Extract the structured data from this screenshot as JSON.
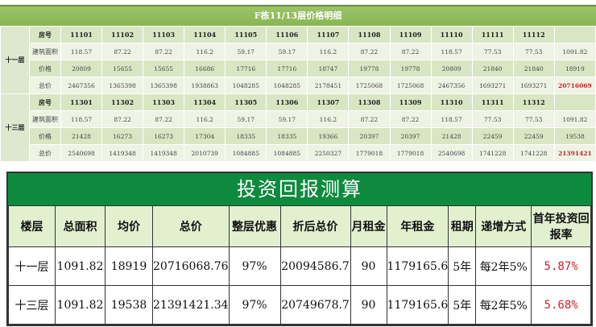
{
  "top": {
    "title": "F栋11/13层价格明细",
    "row_labels": [
      "房号",
      "建筑面积",
      "价格",
      "总价"
    ],
    "floors": [
      {
        "name": "十一层",
        "rooms": [
          "11101",
          "11102",
          "11103",
          "11104",
          "11105",
          "11106",
          "11107",
          "11108",
          "11109",
          "11110",
          "11111",
          "11112",
          ""
        ],
        "area": [
          "118.57",
          "87.22",
          "87.22",
          "116.2",
          "59.17",
          "59.17",
          "116.2",
          "87.22",
          "87.22",
          "118.57",
          "77.53",
          "77.53",
          "1091.82"
        ],
        "price": [
          "20809",
          "15655",
          "15655",
          "16686",
          "17716",
          "17716",
          "18747",
          "19778",
          "19778",
          "20809",
          "21840",
          "21840",
          "18919"
        ],
        "total": [
          "2467356",
          "1365398",
          "1365398",
          "1938863",
          "1048285",
          "1048285",
          "2178451",
          "1725068",
          "1725068",
          "2467356",
          "1693271",
          "1693271",
          "20716069"
        ]
      },
      {
        "name": "十三层",
        "rooms": [
          "11301",
          "11302",
          "11303",
          "11304",
          "11305",
          "11306",
          "11307",
          "11308",
          "11309",
          "11310",
          "11311",
          "11312",
          ""
        ],
        "area": [
          "118.57",
          "87.22",
          "87.22",
          "116.2",
          "59.17",
          "59.17",
          "116.2",
          "87.22",
          "87.22",
          "118.57",
          "77.53",
          "77.53",
          "1091.82"
        ],
        "price": [
          "21428",
          "16273",
          "16273",
          "17304",
          "18335",
          "18335",
          "19366",
          "20397",
          "20397",
          "21428",
          "22459",
          "22459",
          "19538"
        ],
        "total": [
          "2540698",
          "1419348",
          "1419348",
          "2010739",
          "1084885",
          "1084885",
          "2250327",
          "1779018",
          "1779018",
          "2540698",
          "1741228",
          "1741228",
          "21391421"
        ]
      }
    ]
  },
  "bottom": {
    "title": "投资回报测算",
    "headers": [
      "楼层",
      "总面积",
      "均价",
      "总价",
      "整层优惠",
      "折后总价",
      "月租金",
      "年租金",
      "租期",
      "递增方式",
      "首年投资回报率"
    ],
    "rows": [
      [
        "十一层",
        "1091.82",
        "18919",
        "20716068.76",
        "97%",
        "20094586.7",
        "90",
        "1179165.6",
        "5年",
        "每2年5%",
        "5.87%"
      ],
      [
        "十三层",
        "1091.82",
        "19538",
        "21391421.34",
        "97%",
        "20749678.7",
        "90",
        "1179165.6",
        "5年",
        "每2年5%",
        "5.68%"
      ]
    ]
  }
}
